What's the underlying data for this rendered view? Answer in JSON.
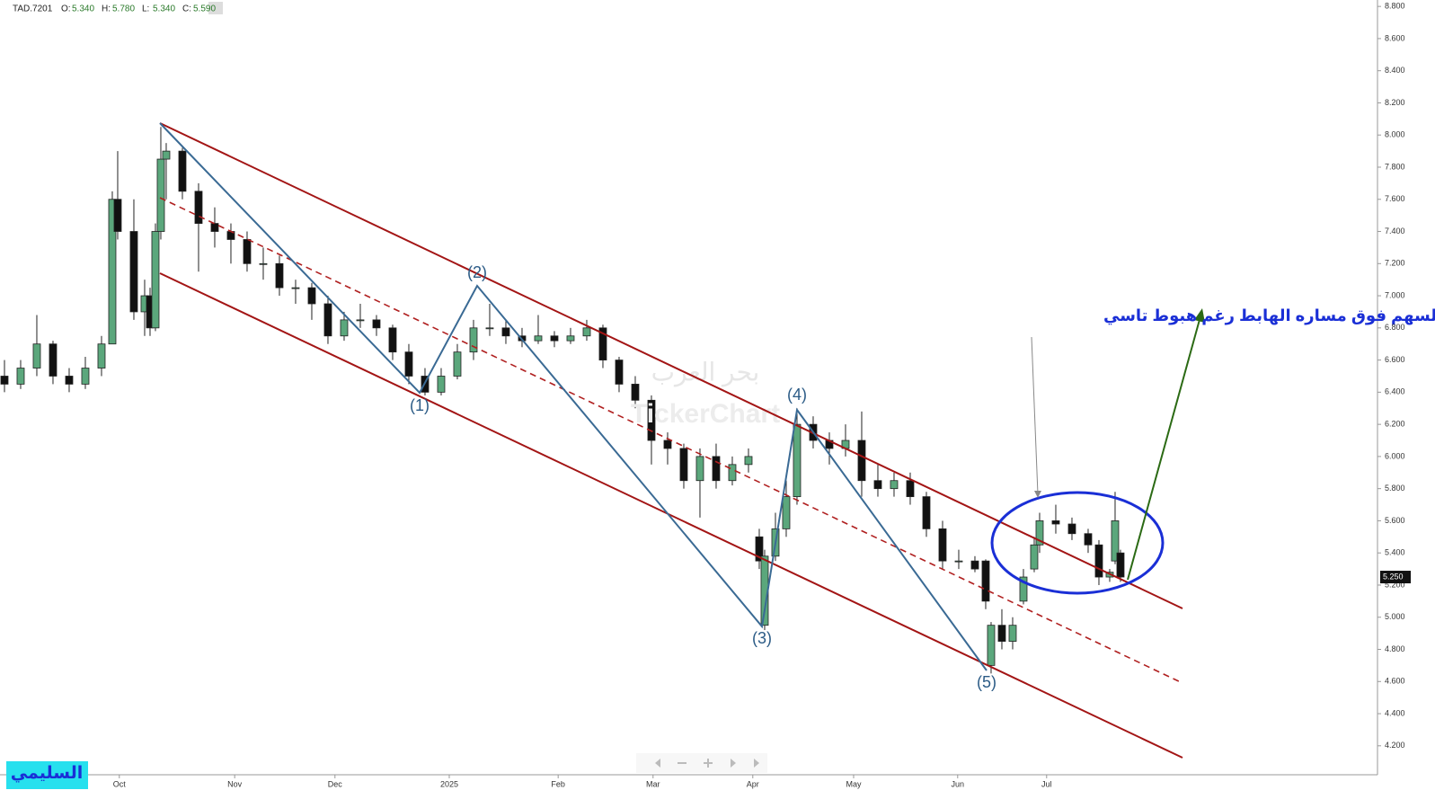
{
  "header": {
    "symbol": "TAD.7201",
    "ohlc": [
      {
        "label": "O:",
        "value": "5.340"
      },
      {
        "label": "H:",
        "value": "5.780"
      },
      {
        "label": "L:",
        "value": "5.340"
      },
      {
        "label": "C:",
        "value": "5.590"
      }
    ]
  },
  "chart_data": {
    "type": "candlestick",
    "xlim": [
      -0.83,
      254.67
    ],
    "ylim": [
      4.02,
      8.84
    ],
    "xticks": [
      {
        "value": 21.3,
        "label": "Oct"
      },
      {
        "value": 42.7,
        "label": "Nov"
      },
      {
        "value": 61.3,
        "label": "Dec"
      },
      {
        "value": 82.5,
        "label": "2025"
      },
      {
        "value": 102.7,
        "label": "Feb"
      },
      {
        "value": 120.3,
        "label": "Mar"
      },
      {
        "value": 138.8,
        "label": "Apr"
      },
      {
        "value": 157.5,
        "label": "May"
      },
      {
        "value": 176.8,
        "label": "Jun"
      },
      {
        "value": 193.3,
        "label": "Jul"
      }
    ],
    "yticks": [
      {
        "value": 4.2,
        "label": "4.200"
      },
      {
        "value": 4.4,
        "label": "4.400"
      },
      {
        "value": 4.6,
        "label": "4.600"
      },
      {
        "value": 4.8,
        "label": "4.800"
      },
      {
        "value": 5.0,
        "label": "5.000"
      },
      {
        "value": 5.2,
        "label": "5.200"
      },
      {
        "value": 5.4,
        "label": "5.400"
      },
      {
        "value": 5.6,
        "label": "5.600"
      },
      {
        "value": 5.8,
        "label": "5.800"
      },
      {
        "value": 6.0,
        "label": "6.000"
      },
      {
        "value": 6.2,
        "label": "6.200"
      },
      {
        "value": 6.4,
        "label": "6.400"
      },
      {
        "value": 6.6,
        "label": "6.600"
      },
      {
        "value": 6.8,
        "label": "6.800"
      },
      {
        "value": 7.0,
        "label": "7.000"
      },
      {
        "value": 7.2,
        "label": "7.200"
      },
      {
        "value": 7.4,
        "label": "7.400"
      },
      {
        "value": 7.6,
        "label": "7.600"
      },
      {
        "value": 7.8,
        "label": "7.800"
      },
      {
        "value": 8.0,
        "label": "8.000"
      },
      {
        "value": 8.2,
        "label": "8.200"
      },
      {
        "value": 8.4,
        "label": "8.400"
      },
      {
        "value": 8.6,
        "label": "8.600"
      },
      {
        "value": 8.8,
        "label": "8.800"
      }
    ],
    "up_color": "#5ba77c",
    "down_color": "#111111",
    "last_price": {
      "value": 5.25,
      "label": "5.250"
    },
    "candles": [
      [
        0,
        6.5,
        6.6,
        6.4,
        6.45
      ],
      [
        3,
        6.45,
        6.6,
        6.42,
        6.55
      ],
      [
        6,
        6.55,
        6.88,
        6.5,
        6.7
      ],
      [
        9,
        6.7,
        6.72,
        6.45,
        6.5
      ],
      [
        12,
        6.5,
        6.55,
        6.4,
        6.45
      ],
      [
        15,
        6.45,
        6.62,
        6.42,
        6.55
      ],
      [
        18,
        6.55,
        6.75,
        6.5,
        6.7
      ],
      [
        20,
        6.7,
        7.65,
        6.7,
        7.6
      ],
      [
        21,
        7.6,
        7.9,
        7.35,
        7.4
      ],
      [
        24,
        7.4,
        7.6,
        6.85,
        6.9
      ],
      [
        26,
        6.9,
        7.1,
        6.75,
        7.0
      ],
      [
        27,
        7.0,
        7.05,
        6.75,
        6.8
      ],
      [
        28,
        6.8,
        7.45,
        6.78,
        7.4
      ],
      [
        29,
        7.4,
        8.05,
        7.35,
        7.85
      ],
      [
        30,
        7.85,
        7.95,
        7.6,
        7.9
      ],
      [
        33,
        7.9,
        7.92,
        7.6,
        7.65
      ],
      [
        36,
        7.65,
        7.7,
        7.15,
        7.45
      ],
      [
        39,
        7.45,
        7.55,
        7.3,
        7.4
      ],
      [
        42,
        7.4,
        7.45,
        7.2,
        7.35
      ],
      [
        45,
        7.35,
        7.4,
        7.15,
        7.2
      ],
      [
        48,
        7.2,
        7.3,
        7.1,
        7.2
      ],
      [
        51,
        7.2,
        7.25,
        7.0,
        7.05
      ],
      [
        54,
        7.05,
        7.1,
        6.95,
        7.05
      ],
      [
        57,
        7.05,
        7.08,
        6.85,
        6.95
      ],
      [
        60,
        6.95,
        7.0,
        6.7,
        6.75
      ],
      [
        63,
        6.75,
        6.9,
        6.72,
        6.85
      ],
      [
        66,
        6.85,
        6.95,
        6.8,
        6.85
      ],
      [
        69,
        6.85,
        6.88,
        6.75,
        6.8
      ],
      [
        72,
        6.8,
        6.82,
        6.6,
        6.65
      ],
      [
        75,
        6.65,
        6.7,
        6.45,
        6.5
      ],
      [
        78,
        6.5,
        6.55,
        6.38,
        6.4
      ],
      [
        81,
        6.4,
        6.55,
        6.38,
        6.5
      ],
      [
        84,
        6.5,
        6.7,
        6.48,
        6.65
      ],
      [
        87,
        6.65,
        6.85,
        6.6,
        6.8
      ],
      [
        90,
        6.8,
        6.95,
        6.75,
        6.8
      ],
      [
        93,
        6.8,
        6.85,
        6.7,
        6.75
      ],
      [
        96,
        6.75,
        6.8,
        6.68,
        6.72
      ],
      [
        99,
        6.72,
        6.88,
        6.7,
        6.75
      ],
      [
        102,
        6.75,
        6.78,
        6.68,
        6.72
      ],
      [
        105,
        6.72,
        6.8,
        6.7,
        6.75
      ],
      [
        108,
        6.75,
        6.85,
        6.72,
        6.8
      ],
      [
        111,
        6.8,
        6.82,
        6.55,
        6.6
      ],
      [
        114,
        6.6,
        6.62,
        6.4,
        6.45
      ],
      [
        117,
        6.45,
        6.5,
        6.3,
        6.35
      ],
      [
        120,
        6.35,
        6.38,
        5.95,
        6.1
      ],
      [
        123,
        6.1,
        6.15,
        5.95,
        6.05
      ],
      [
        126,
        6.05,
        6.08,
        5.8,
        5.85
      ],
      [
        129,
        5.85,
        6.05,
        5.62,
        6.0
      ],
      [
        132,
        6.0,
        6.08,
        5.8,
        5.85
      ],
      [
        135,
        5.85,
        6.0,
        5.82,
        5.95
      ],
      [
        138,
        5.95,
        6.05,
        5.9,
        6.0
      ],
      [
        140,
        5.5,
        5.55,
        5.3,
        5.35
      ],
      [
        141,
        4.95,
        5.42,
        4.92,
        5.38
      ],
      [
        143,
        5.38,
        5.65,
        5.35,
        5.55
      ],
      [
        145,
        5.55,
        5.85,
        5.5,
        5.75
      ],
      [
        147,
        5.75,
        6.3,
        5.7,
        6.2
      ],
      [
        150,
        6.2,
        6.25,
        6.05,
        6.1
      ],
      [
        153,
        6.1,
        6.15,
        5.95,
        6.05
      ],
      [
        156,
        6.05,
        6.2,
        6.0,
        6.1
      ],
      [
        159,
        6.1,
        6.28,
        5.75,
        5.85
      ],
      [
        162,
        5.85,
        5.95,
        5.75,
        5.8
      ],
      [
        165,
        5.8,
        5.9,
        5.75,
        5.85
      ],
      [
        168,
        5.85,
        5.9,
        5.7,
        5.75
      ],
      [
        171,
        5.75,
        5.78,
        5.5,
        5.55
      ],
      [
        174,
        5.55,
        5.6,
        5.3,
        5.35
      ],
      [
        177,
        5.35,
        5.42,
        5.3,
        5.35
      ],
      [
        180,
        5.35,
        5.38,
        5.28,
        5.3
      ],
      [
        182,
        5.35,
        5.36,
        5.05,
        5.1
      ],
      [
        183,
        4.7,
        4.97,
        4.65,
        4.95
      ],
      [
        185,
        4.95,
        5.05,
        4.8,
        4.85
      ],
      [
        187,
        4.85,
        5.0,
        4.8,
        4.95
      ],
      [
        189,
        5.1,
        5.3,
        5.08,
        5.25
      ],
      [
        191,
        5.3,
        5.5,
        5.28,
        5.45
      ],
      [
        192,
        5.45,
        5.65,
        5.4,
        5.6
      ],
      [
        195,
        5.6,
        5.7,
        5.52,
        5.58
      ],
      [
        198,
        5.58,
        5.62,
        5.48,
        5.52
      ],
      [
        201,
        5.52,
        5.55,
        5.4,
        5.45
      ],
      [
        203,
        5.45,
        5.48,
        5.2,
        5.25
      ],
      [
        205,
        5.25,
        5.3,
        5.22,
        5.28
      ],
      [
        206,
        5.35,
        5.78,
        5.33,
        5.6
      ],
      [
        207,
        5.4,
        5.42,
        5.22,
        5.25
      ]
    ],
    "waves": [
      "(1)",
      "(2)",
      "(3)",
      "(4)",
      "(5)"
    ],
    "annotation": "اطول فتره يقضيها السهم فوق مساره الهابط رغم هبوط تاسي",
    "watermark": [
      "بحر العرب",
      "TickerChart"
    ],
    "author": "السليمي"
  }
}
